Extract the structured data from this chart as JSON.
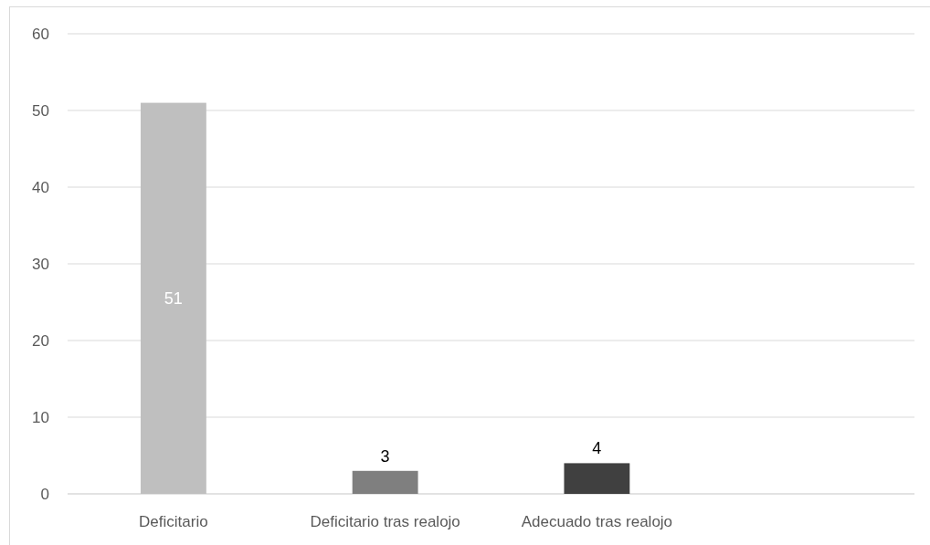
{
  "chart_data": {
    "type": "bar",
    "categories": [
      "Deficitario",
      "Deficitario tras realojo",
      "Adecuado tras realojo",
      null
    ],
    "values": [
      51,
      3,
      4,
      null
    ],
    "colors": [
      "#bfbfbf",
      "#7f7f7f",
      "#404040",
      null
    ],
    "ylim": [
      0,
      60
    ],
    "yticks": [
      0,
      10,
      20,
      30,
      40,
      50,
      60
    ],
    "grid": "y",
    "data_labels": true
  }
}
